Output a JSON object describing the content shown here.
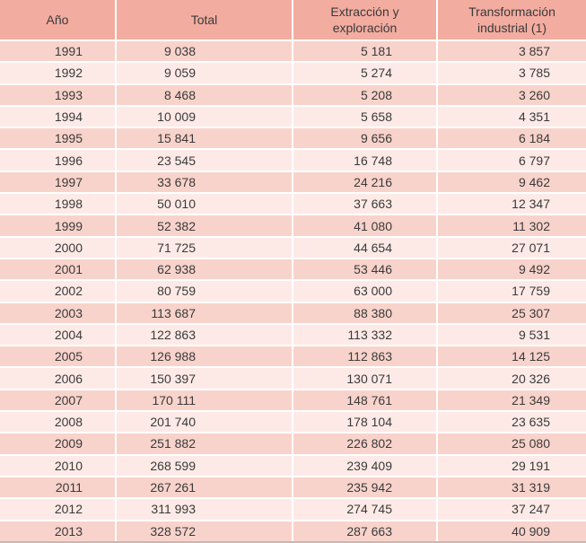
{
  "colors": {
    "header_bg": "#f3aca0",
    "row_dark": "#f8d3cb",
    "row_light": "#fdeae6",
    "separator": "#ffffff",
    "text": "#3a3a3a",
    "bottom_edge": "#c9b7b3"
  },
  "chart_data": {
    "type": "table",
    "columns": [
      "Año",
      "Total",
      "Extracción y exploración",
      "Transformación industrial (1)"
    ],
    "rows": [
      [
        "1991",
        "9 038",
        "5 181",
        "3 857"
      ],
      [
        "1992",
        "9 059",
        "5 274",
        "3 785"
      ],
      [
        "1993",
        "8 468",
        "5 208",
        "3 260"
      ],
      [
        "1994",
        "10 009",
        "5 658",
        "4 351"
      ],
      [
        "1995",
        "15 841",
        "9 656",
        "6 184"
      ],
      [
        "1996",
        "23 545",
        "16 748",
        "6 797"
      ],
      [
        "1997",
        "33 678",
        "24 216",
        "9 462"
      ],
      [
        "1998",
        "50 010",
        "37 663",
        "12 347"
      ],
      [
        "1999",
        "52 382",
        "41 080",
        "11 302"
      ],
      [
        "2000",
        "71 725",
        "44 654",
        "27 071"
      ],
      [
        "2001",
        "62 938",
        "53 446",
        "9 492"
      ],
      [
        "2002",
        "80 759",
        "63 000",
        "17 759"
      ],
      [
        "2003",
        "113 687",
        "88 380",
        "25 307"
      ],
      [
        "2004",
        "122 863",
        "113 332",
        "9 531"
      ],
      [
        "2005",
        "126 988",
        "112 863",
        "14 125"
      ],
      [
        "2006",
        "150 397",
        "130 071",
        "20 326"
      ],
      [
        "2007",
        "170 111",
        "148 761",
        "21 349"
      ],
      [
        "2008",
        "201 740",
        "178 104",
        "23 635"
      ],
      [
        "2009",
        "251 882",
        "226 802",
        "25 080"
      ],
      [
        "2010",
        "268 599",
        "239 409",
        "29 191"
      ],
      [
        "2011",
        "267 261",
        "235 942",
        "31 319"
      ],
      [
        "2012",
        "311 993",
        "274 745",
        "37 247"
      ],
      [
        "2013",
        "328 572",
        "287 663",
        "40 909"
      ]
    ]
  }
}
